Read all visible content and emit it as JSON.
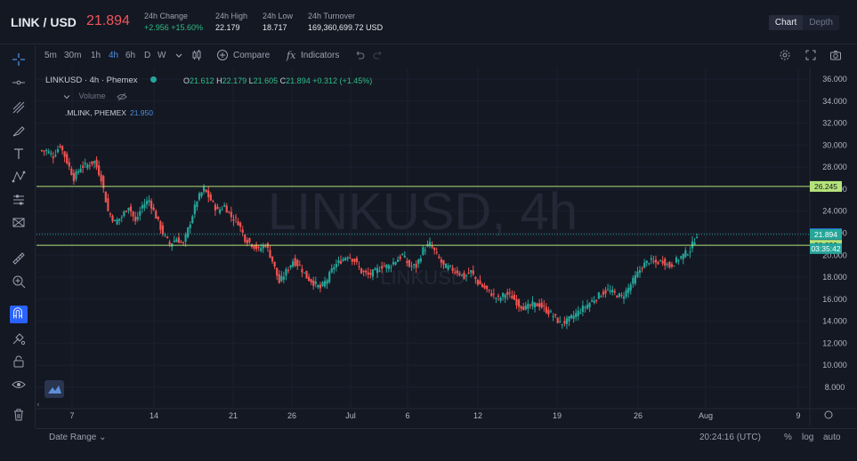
{
  "header": {
    "pair": "LINK / USD",
    "last_price": "21.894",
    "stats": [
      {
        "label": "24h Change",
        "value": "+2.956 +15.60%",
        "up": true
      },
      {
        "label": "24h High",
        "value": "22.179",
        "up": false
      },
      {
        "label": "24h Low",
        "value": "18.717",
        "up": false
      },
      {
        "label": "24h Turnover",
        "value": "169,360,699.72 USD",
        "up": false
      }
    ],
    "view_tabs": [
      "Chart",
      "Depth"
    ]
  },
  "toolbar": {
    "intervals": [
      "5m",
      "30m",
      "1h",
      "4h",
      "6h",
      "D",
      "W"
    ],
    "active_interval": "4h",
    "compare_label": "Compare",
    "indicators_label": "Indicators"
  },
  "legend": {
    "symbol": "LINKUSD · 4h · Phemex",
    "open_key": "O",
    "open": "21.612",
    "high_key": "H",
    "high": "22.179",
    "low_key": "L",
    "low": "21.605",
    "close_key": "C",
    "close": "21.894",
    "change": "+0.312 (+1.45%)",
    "volume_label": "Volume",
    "index_label": ".MLINK, PHEMEX",
    "index_value": "21.950"
  },
  "watermark": {
    "main": "LINKUSD, 4h",
    "sub": "LINKUSD"
  },
  "footer": {
    "date_range": "Date Range",
    "time": "20:24:16 (UTC)",
    "pct": "%",
    "log": "log",
    "auto": "auto"
  },
  "chart_data": {
    "type": "candlestick",
    "y_ticks": [
      "36.000",
      "34.000",
      "32.000",
      "30.000",
      "28.000",
      "26.000",
      "24.000",
      "22.000",
      "20.000",
      "18.000",
      "16.000",
      "14.000",
      "12.000",
      "10.000",
      "8.000"
    ],
    "x_ticks": [
      "7",
      "14",
      "21",
      "26",
      "Jul",
      "6",
      "12",
      "19",
      "26",
      "Aug",
      "9"
    ],
    "ylim": [
      8,
      36
    ],
    "lines": [
      {
        "value": 26.245,
        "label": "26.245",
        "color": "#b5e37a"
      },
      {
        "value": 20.899,
        "label": "20.899",
        "color": "#b5e37a"
      }
    ],
    "badges": [
      {
        "value": 21.95,
        "label": "21.950",
        "color": "#2962ff"
      },
      {
        "value": 21.894,
        "label": "21.894",
        "color": "#26a69a"
      },
      {
        "value": 20.6,
        "label": "03:35:42",
        "color": "#26a69a"
      }
    ],
    "close_path": [
      29.5,
      29.0,
      30.0,
      28.5,
      27.0,
      28.0,
      28.2,
      28.5,
      27.0,
      24.0,
      23.0,
      23.5,
      24.5,
      23.0,
      24.5,
      25.0,
      23.5,
      22.0,
      21.0,
      21.5,
      21.0,
      23.0,
      25.0,
      26.0,
      25.0,
      24.0,
      24.5,
      23.5,
      23.0,
      21.5,
      21.0,
      20.5,
      21.0,
      19.5,
      17.5,
      18.5,
      19.5,
      19.0,
      18.0,
      17.5,
      17.0,
      17.8,
      19.0,
      19.5,
      20.0,
      19.5,
      18.5,
      18.2,
      18.5,
      19.0,
      19.0,
      19.5,
      20.0,
      19.0,
      19.0,
      20.5,
      21.0,
      20.0,
      19.0,
      18.8,
      18.5,
      18.0,
      18.5,
      17.5,
      17.0,
      16.5,
      16.0,
      16.5,
      16.2,
      15.5,
      15.2,
      15.5,
      15.5,
      15.0,
      14.5,
      13.8,
      14.0,
      14.5,
      15.0,
      15.5,
      16.0,
      16.5,
      16.8,
      16.5,
      16.2,
      17.0,
      18.0,
      19.0,
      19.5,
      19.3,
      19.5,
      19.0,
      19.5,
      20.0,
      20.5,
      21.9
    ]
  }
}
